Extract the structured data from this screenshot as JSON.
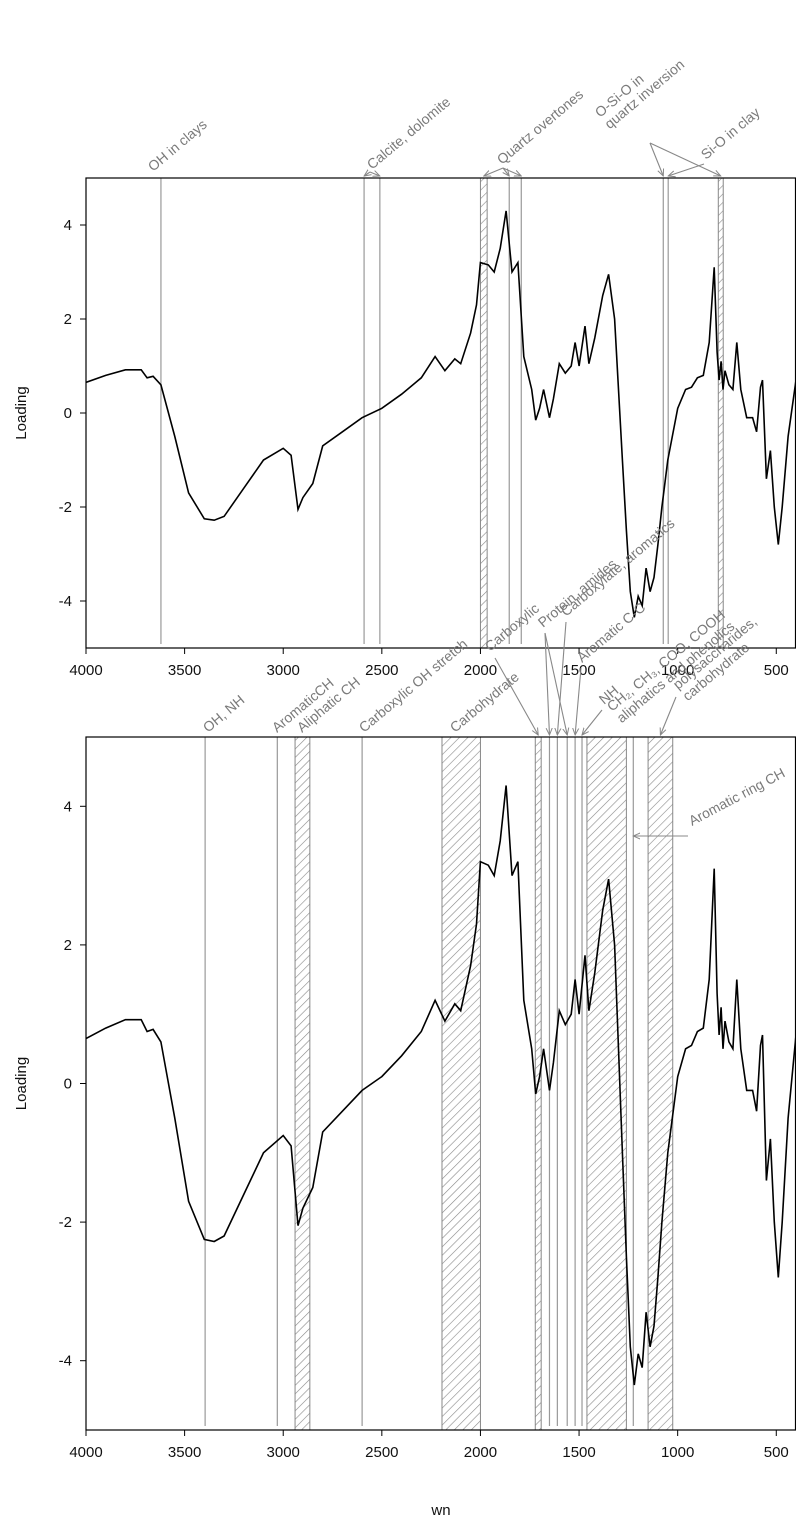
{
  "chart_data": [
    {
      "type": "line",
      "y_label": "Loading",
      "xlim": [
        4000,
        400
      ],
      "ylim": [
        -5,
        5
      ],
      "xticks": [
        4000,
        3500,
        3000,
        2500,
        2000,
        1500,
        1000,
        500
      ],
      "yticks": [
        -4,
        -2,
        0,
        2,
        4
      ],
      "color": "#000000",
      "x": [
        4000,
        3900,
        3800,
        3720,
        3690,
        3660,
        3620,
        3550,
        3480,
        3400,
        3350,
        3300,
        3200,
        3100,
        3000,
        2960,
        2925,
        2900,
        2850,
        2800,
        2700,
        2600,
        2500,
        2400,
        2300,
        2230,
        2180,
        2130,
        2100,
        2050,
        2020,
        2000,
        1960,
        1930,
        1900,
        1870,
        1840,
        1810,
        1780,
        1740,
        1720,
        1700,
        1680,
        1650,
        1630,
        1600,
        1570,
        1540,
        1520,
        1500,
        1470,
        1450,
        1420,
        1380,
        1350,
        1320,
        1280,
        1260,
        1240,
        1220,
        1200,
        1180,
        1160,
        1140,
        1120,
        1100,
        1080,
        1050,
        1000,
        960,
        930,
        900,
        870,
        840,
        815,
        800,
        790,
        780,
        770,
        760,
        740,
        720,
        700,
        680,
        650,
        620,
        600,
        580,
        570,
        550,
        530,
        510,
        490,
        470,
        440,
        400
      ],
      "values": [
        0.65,
        0.8,
        0.92,
        0.92,
        0.75,
        0.78,
        0.6,
        -0.5,
        -1.7,
        -2.25,
        -2.28,
        -2.2,
        -1.6,
        -1.0,
        -0.75,
        -0.9,
        -2.05,
        -1.8,
        -1.5,
        -0.7,
        -0.4,
        -0.1,
        0.1,
        0.4,
        0.75,
        1.2,
        0.9,
        1.15,
        1.05,
        1.7,
        2.3,
        3.2,
        3.15,
        3.0,
        3.5,
        4.3,
        3.0,
        3.2,
        1.2,
        0.5,
        -0.15,
        0.1,
        0.5,
        -0.1,
        0.3,
        1.05,
        0.85,
        1.0,
        1.5,
        1.0,
        1.85,
        1.05,
        1.6,
        2.5,
        2.95,
        2.0,
        -1.0,
        -2.5,
        -3.8,
        -4.35,
        -3.9,
        -4.1,
        -3.3,
        -3.8,
        -3.5,
        -2.8,
        -2.0,
        -1.0,
        0.1,
        0.5,
        0.55,
        0.75,
        0.8,
        1.5,
        3.1,
        1.3,
        0.7,
        1.1,
        0.5,
        0.9,
        0.6,
        0.5,
        1.5,
        0.5,
        -0.1,
        -0.1,
        -0.4,
        0.55,
        0.7,
        -1.4,
        -0.8,
        -2.0,
        -2.8,
        -2.0,
        -0.5,
        0.7
      ],
      "annotations": [
        {
          "text": [
            "OH in clays"
          ],
          "lines": [
            3620
          ]
        },
        {
          "text": [
            "Calcite, dolomite"
          ],
          "lines": [
            2590,
            2510
          ]
        },
        {
          "text": [
            "Quartz overtones"
          ],
          "lines": [
            1854,
            1793
          ],
          "bands": [
            [
              2000,
              1966
            ]
          ]
        },
        {
          "text": [
            "O-Si-O in",
            "quartz inversion"
          ],
          "lines": [
            1073
          ],
          "bands": [
            [
              794,
              769
            ]
          ]
        },
        {
          "text": [
            "Si-O in clay"
          ],
          "lines": [
            1048
          ]
        }
      ]
    },
    {
      "type": "line",
      "y_label": "Loading",
      "x_label": "wn",
      "xlim": [
        4000,
        400
      ],
      "ylim": [
        -5,
        5
      ],
      "xticks": [
        4000,
        3500,
        3000,
        2500,
        2000,
        1500,
        1000,
        500
      ],
      "yticks": [
        -4,
        -2,
        0,
        2,
        4
      ],
      "color": "#000000",
      "x": [
        4000,
        3900,
        3800,
        3720,
        3690,
        3660,
        3620,
        3550,
        3480,
        3400,
        3350,
        3300,
        3200,
        3100,
        3000,
        2960,
        2925,
        2900,
        2850,
        2800,
        2700,
        2600,
        2500,
        2400,
        2300,
        2230,
        2180,
        2130,
        2100,
        2050,
        2020,
        2000,
        1960,
        1930,
        1900,
        1870,
        1840,
        1810,
        1780,
        1740,
        1720,
        1700,
        1680,
        1650,
        1630,
        1600,
        1570,
        1540,
        1520,
        1500,
        1470,
        1450,
        1420,
        1380,
        1350,
        1320,
        1280,
        1260,
        1240,
        1220,
        1200,
        1180,
        1160,
        1140,
        1120,
        1100,
        1080,
        1050,
        1000,
        960,
        930,
        900,
        870,
        840,
        815,
        800,
        790,
        780,
        770,
        760,
        740,
        720,
        700,
        680,
        650,
        620,
        600,
        580,
        570,
        550,
        530,
        510,
        490,
        470,
        440,
        400
      ],
      "values": [
        0.65,
        0.8,
        0.92,
        0.92,
        0.75,
        0.78,
        0.6,
        -0.5,
        -1.7,
        -2.25,
        -2.28,
        -2.2,
        -1.6,
        -1.0,
        -0.75,
        -0.9,
        -2.05,
        -1.8,
        -1.5,
        -0.7,
        -0.4,
        -0.1,
        0.1,
        0.4,
        0.75,
        1.2,
        0.9,
        1.15,
        1.05,
        1.7,
        2.3,
        3.2,
        3.15,
        3.0,
        3.5,
        4.3,
        3.0,
        3.2,
        1.2,
        0.5,
        -0.15,
        0.1,
        0.5,
        -0.1,
        0.3,
        1.05,
        0.85,
        1.0,
        1.5,
        1.0,
        1.85,
        1.05,
        1.6,
        2.5,
        2.95,
        2.0,
        -1.0,
        -2.5,
        -3.8,
        -4.35,
        -3.9,
        -4.1,
        -3.3,
        -3.8,
        -3.5,
        -2.8,
        -2.0,
        -1.0,
        0.1,
        0.5,
        0.55,
        0.75,
        0.8,
        1.5,
        3.1,
        1.3,
        0.7,
        1.1,
        0.5,
        0.9,
        0.6,
        0.5,
        1.5,
        0.5,
        -0.1,
        -0.1,
        -0.4,
        0.55,
        0.7,
        -1.4,
        -0.8,
        -2.0,
        -2.8,
        -2.0,
        -0.5,
        0.7
      ],
      "annotations": [
        {
          "text": [
            "OH, NH"
          ],
          "lines": [
            3396
          ]
        },
        {
          "text": [
            "AromaticCH"
          ],
          "lines": [
            3030
          ]
        },
        {
          "text": [
            "Aliphatic CH"
          ],
          "bands": [
            [
              2940,
              2865
            ]
          ]
        },
        {
          "text": [
            "Carboxylic OH stretch"
          ],
          "lines": [
            2600
          ]
        },
        {
          "text": [
            "Carbohydrate"
          ],
          "bands": [
            [
              2195,
              2000
            ]
          ]
        },
        {
          "text": [
            "Carboxylic"
          ],
          "bands": [
            [
              1722,
              1692
            ]
          ]
        },
        {
          "text": [
            "Protein, amides"
          ],
          "lines": [
            1650,
            1560
          ]
        },
        {
          "text": [
            "Carboxylate, aromatics"
          ],
          "lines": [
            1610
          ]
        },
        {
          "text": [
            "Aromatic C-C"
          ],
          "lines": [
            1520
          ]
        },
        {
          "text": [
            "NH"
          ],
          "lines": [
            1485
          ]
        },
        {
          "text": [
            "CH₂, CH₃, COO, COOH",
            "aliphatics and phenolics"
          ],
          "bands": [
            [
              1460,
              1260
            ]
          ]
        },
        {
          "text": [
            "polysaccharides,",
            "carbohydrate"
          ],
          "bands": [
            [
              1150,
              1025
            ]
          ]
        },
        {
          "text": [
            "Aromatic ring CH"
          ],
          "lines": [
            1225
          ]
        }
      ]
    }
  ]
}
